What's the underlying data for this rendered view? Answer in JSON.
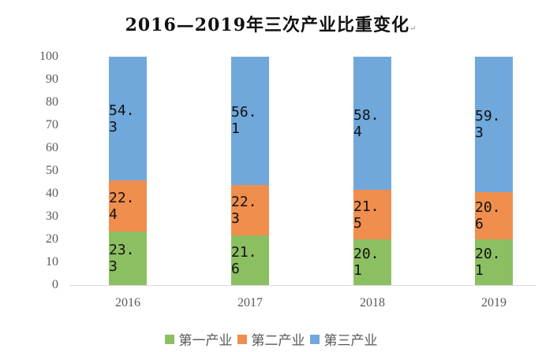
{
  "title": "2016—2019年三次产业比重变化",
  "title_mark": "↵",
  "colors": {
    "primary": "#8cbf62",
    "secondary": "#f08e4e",
    "tertiary": "#70a8dc"
  },
  "chart_data": {
    "type": "bar",
    "stacked": true,
    "title": "2016—2019年三次产业比重变化",
    "xlabel": "",
    "ylabel": "",
    "categories": [
      "2016",
      "2017",
      "2018",
      "2019"
    ],
    "series": [
      {
        "name": "第一产业",
        "color": "#8cbf62",
        "values": [
          23.3,
          21.6,
          20.1,
          20.1
        ]
      },
      {
        "name": "第二产业",
        "color": "#f08e4e",
        "values": [
          22.4,
          22.3,
          21.5,
          20.6
        ]
      },
      {
        "name": "第三产业",
        "color": "#70a8dc",
        "values": [
          54.3,
          56.1,
          58.4,
          59.3
        ]
      }
    ],
    "ylim": [
      0,
      100
    ],
    "yticks": [
      "0",
      "10",
      "20",
      "30",
      "40",
      "50",
      "60",
      "70",
      "80",
      "90",
      "100"
    ],
    "grid": false,
    "legend_position": "bottom"
  },
  "legend": [
    {
      "label": "第一产业"
    },
    {
      "label": "第二产业"
    },
    {
      "label": "第三产业"
    }
  ]
}
